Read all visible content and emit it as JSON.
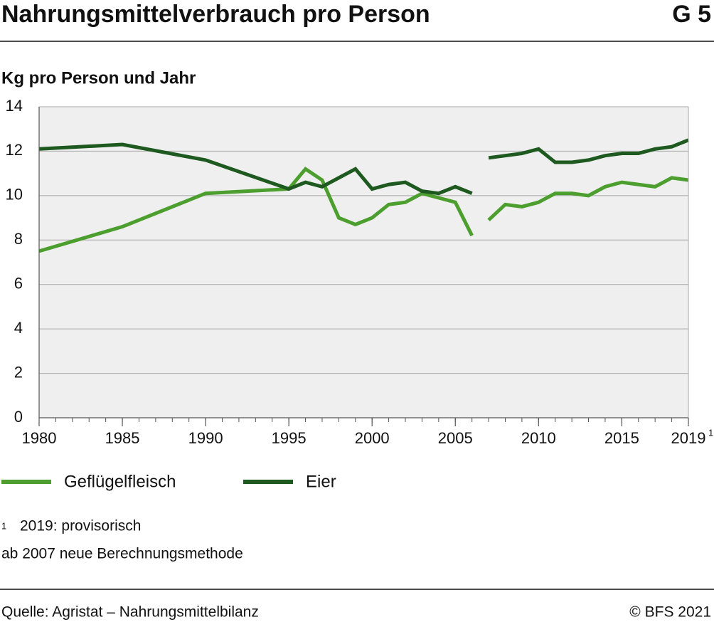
{
  "header": {
    "title": "Nahrungsmittelverbrauch pro Person",
    "code": "G 5"
  },
  "chart_data": {
    "type": "line",
    "y_label": "Kg pro Person und Jahr",
    "x": [
      1980,
      1985,
      1990,
      1995,
      1996,
      1997,
      1998,
      1999,
      2000,
      2001,
      2002,
      2003,
      2004,
      2005,
      2006,
      null,
      2007,
      2008,
      2009,
      2010,
      2011,
      2012,
      2013,
      2014,
      2015,
      2016,
      2017,
      2018,
      2019
    ],
    "series": [
      {
        "name": "Geflügelfleisch",
        "color": "#4c9f2f",
        "values": [
          7.5,
          8.6,
          10.1,
          10.3,
          11.2,
          10.7,
          9.0,
          8.7,
          9.0,
          9.6,
          9.7,
          10.1,
          9.9,
          9.7,
          8.2,
          null,
          8.9,
          9.6,
          9.5,
          9.7,
          10.1,
          10.1,
          10.0,
          10.4,
          10.6,
          10.5,
          10.4,
          10.8,
          10.7
        ]
      },
      {
        "name": "Eier",
        "color": "#1e5a20",
        "values": [
          12.1,
          12.3,
          11.6,
          10.3,
          10.6,
          10.4,
          10.8,
          11.2,
          10.3,
          10.5,
          10.6,
          10.2,
          10.1,
          10.4,
          10.1,
          null,
          11.7,
          11.8,
          11.9,
          12.1,
          11.5,
          11.5,
          11.6,
          11.8,
          11.9,
          11.9,
          12.1,
          12.2,
          12.5
        ]
      }
    ],
    "xlim": [
      1980,
      2019
    ],
    "xticks": [
      1980,
      1985,
      1990,
      1995,
      2000,
      2005,
      2010,
      2015,
      2019
    ],
    "x_tick_footnote": "1",
    "ylim": [
      0,
      14
    ],
    "yticks": [
      0,
      2,
      4,
      6,
      8,
      10,
      12,
      14
    ],
    "grid": true
  },
  "footnotes": {
    "marker": "1",
    "text": "2019: provisorisch",
    "note": "ab 2007 neue Berechnungsmethode"
  },
  "footer": {
    "source": "Quelle: Agristat – Nahrungsmittelbilanz",
    "copyright": "© BFS 2021"
  }
}
